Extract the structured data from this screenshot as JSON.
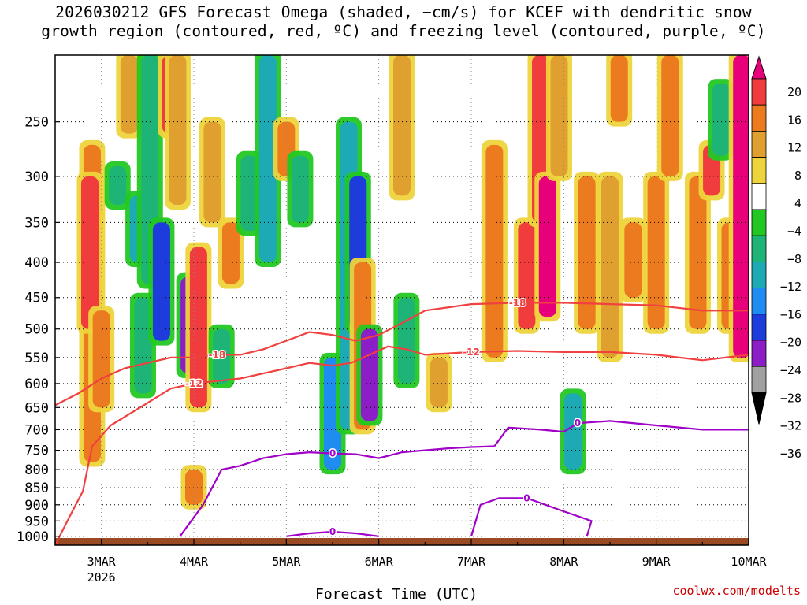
{
  "header": {
    "title_line1": "2026030212 GFS Forecast Omega (shaded, −cm/s) for KCEF with dendritic snow",
    "title_line2": "growth region (contoured, red, ºC) and freezing level (contoured, purple, ºC)"
  },
  "credit": "coolwx.com/modelts",
  "chart_data": {
    "type": "heatmap",
    "title": "2026030212 GFS Forecast Omega (shaded, −cm/s) for KCEF with dendritic snow growth region (contoured, red, ºC) and freezing level (contoured, purple, ºC)",
    "xlabel": "Forecast Time (UTC)",
    "ylabel": "",
    "x_start": "2026-03-02 12Z",
    "x_end": "2026-03-10 00Z",
    "x_ticks": [
      {
        "t": "2026-03-03 00Z",
        "label": "3MAR",
        "sub": "2026"
      },
      {
        "t": "2026-03-04 00Z",
        "label": "4MAR"
      },
      {
        "t": "2026-03-05 00Z",
        "label": "5MAR"
      },
      {
        "t": "2026-03-06 00Z",
        "label": "6MAR"
      },
      {
        "t": "2026-03-07 00Z",
        "label": "7MAR"
      },
      {
        "t": "2026-03-08 00Z",
        "label": "8MAR"
      },
      {
        "t": "2026-03-09 00Z",
        "label": "9MAR"
      },
      {
        "t": "2026-03-10 00Z",
        "label": "10MAR"
      }
    ],
    "y_ticks": [
      250,
      300,
      350,
      400,
      450,
      500,
      550,
      600,
      650,
      700,
      750,
      800,
      850,
      900,
      950,
      1000
    ],
    "y_range": [
      1030,
      200
    ],
    "grid": true,
    "colorbar": {
      "labels": [
        "20",
        "16",
        "12",
        "8",
        "4",
        "−4",
        "−8",
        "−12",
        "−16",
        "−20",
        "−24",
        "−28",
        "−32",
        "−36"
      ],
      "bins": [
        {
          "range": ">20",
          "color": "#e8007a"
        },
        {
          "range": "16 to 20",
          "color": "#f03c3c"
        },
        {
          "range": "12 to 16",
          "color": "#ec7a1e"
        },
        {
          "range": "8 to 12",
          "color": "#e0a030"
        },
        {
          "range": "4 to 8",
          "color": "#eed43c"
        },
        {
          "range": "-4 to 4",
          "color": "#ffffff"
        },
        {
          "range": "-8 to -4",
          "color": "#22c822"
        },
        {
          "range": "-12 to -8",
          "color": "#1eb478"
        },
        {
          "range": "-16 to -12",
          "color": "#1eaab4"
        },
        {
          "range": "-20 to -16",
          "color": "#1e8cf0"
        },
        {
          "range": "-24 to -20",
          "color": "#1e3cdc"
        },
        {
          "range": "-28 to -24",
          "color": "#8c1ec8"
        },
        {
          "range": "-32 to -28",
          "color": "#a0a0a0"
        },
        {
          "range": "<-36",
          "color": "#000000"
        }
      ]
    },
    "omega_features": [
      {
        "t": 0.8,
        "p_top": 270,
        "p_bot": 780,
        "v": 12
      },
      {
        "t": 0.75,
        "p_top": 300,
        "p_bot": 500,
        "v": 16
      },
      {
        "t": 1.0,
        "p_top": 470,
        "p_bot": 650,
        "v": 12
      },
      {
        "t": 1.35,
        "p_top": 290,
        "p_bot": 330,
        "v": -8
      },
      {
        "t": 1.6,
        "p_top": 200,
        "p_bot": 260,
        "v": 8
      },
      {
        "t": 1.8,
        "p_top": 320,
        "p_bot": 400,
        "v": -12
      },
      {
        "t": 1.9,
        "p_top": 450,
        "p_bot": 620,
        "v": -8
      },
      {
        "t": 2.05,
        "p_top": 200,
        "p_bot": 430,
        "v": -8
      },
      {
        "t": 2.3,
        "p_top": 350,
        "p_bot": 520,
        "v": -20
      },
      {
        "t": 2.5,
        "p_top": 200,
        "p_bot": 260,
        "v": 16
      },
      {
        "t": 2.65,
        "p_top": 200,
        "p_bot": 330,
        "v": 8
      },
      {
        "t": 2.9,
        "p_top": 420,
        "p_bot": 580,
        "v": -24
      },
      {
        "t": 3.1,
        "p_top": 380,
        "p_bot": 650,
        "v": 16
      },
      {
        "t": 3.0,
        "p_top": 800,
        "p_bot": 900,
        "v": 12
      },
      {
        "t": 3.4,
        "p_top": 250,
        "p_bot": 350,
        "v": 8
      },
      {
        "t": 3.6,
        "p_top": 500,
        "p_bot": 600,
        "v": -8
      },
      {
        "t": 3.8,
        "p_top": 350,
        "p_bot": 430,
        "v": 12
      },
      {
        "t": 4.2,
        "p_top": 280,
        "p_bot": 360,
        "v": -8
      },
      {
        "t": 4.6,
        "p_top": 200,
        "p_bot": 400,
        "v": -12
      },
      {
        "t": 5.0,
        "p_top": 250,
        "p_bot": 300,
        "v": 12
      },
      {
        "t": 5.3,
        "p_top": 280,
        "p_bot": 350,
        "v": -8
      },
      {
        "t": 6.0,
        "p_top": 550,
        "p_bot": 800,
        "v": -16
      },
      {
        "t": 6.35,
        "p_top": 250,
        "p_bot": 700,
        "v": -12
      },
      {
        "t": 6.55,
        "p_top": 300,
        "p_bot": 500,
        "v": -20
      },
      {
        "t": 6.65,
        "p_top": 400,
        "p_bot": 700,
        "v": 12
      },
      {
        "t": 6.8,
        "p_top": 500,
        "p_bot": 680,
        "v": -24
      },
      {
        "t": 7.5,
        "p_top": 200,
        "p_bot": 320,
        "v": 8
      },
      {
        "t": 7.6,
        "p_top": 450,
        "p_bot": 600,
        "v": -8
      },
      {
        "t": 8.3,
        "p_top": 550,
        "p_bot": 650,
        "v": 8
      },
      {
        "t": 9.5,
        "p_top": 270,
        "p_bot": 550,
        "v": 12
      },
      {
        "t": 10.2,
        "p_top": 350,
        "p_bot": 500,
        "v": 16
      },
      {
        "t": 10.5,
        "p_top": 200,
        "p_bot": 350,
        "v": 16
      },
      {
        "t": 10.65,
        "p_top": 300,
        "p_bot": 480,
        "v": 20
      },
      {
        "t": 10.9,
        "p_top": 200,
        "p_bot": 300,
        "v": 8
      },
      {
        "t": 11.2,
        "p_top": 620,
        "p_bot": 800,
        "v": -12
      },
      {
        "t": 11.5,
        "p_top": 300,
        "p_bot": 500,
        "v": 12
      },
      {
        "t": 12.0,
        "p_top": 300,
        "p_bot": 550,
        "v": 8
      },
      {
        "t": 12.2,
        "p_top": 200,
        "p_bot": 250,
        "v": 12
      },
      {
        "t": 12.5,
        "p_top": 350,
        "p_bot": 450,
        "v": 12
      },
      {
        "t": 13.0,
        "p_top": 300,
        "p_bot": 500,
        "v": 12
      },
      {
        "t": 13.3,
        "p_top": 200,
        "p_bot": 300,
        "v": 12
      },
      {
        "t": 13.9,
        "p_top": 300,
        "p_bot": 500,
        "v": 12
      },
      {
        "t": 14.2,
        "p_top": 270,
        "p_bot": 320,
        "v": 16
      },
      {
        "t": 14.4,
        "p_top": 220,
        "p_bot": 280,
        "v": -8
      },
      {
        "t": 14.6,
        "p_top": 350,
        "p_bot": 500,
        "v": 12
      },
      {
        "t": 14.85,
        "p_top": 200,
        "p_bot": 550,
        "v": 20
      }
    ],
    "red_contours": [
      {
        "label": "-18",
        "points": [
          [
            0,
            645
          ],
          [
            0.5,
            620
          ],
          [
            1.0,
            590
          ],
          [
            1.5,
            570
          ],
          [
            2.0,
            560
          ],
          [
            2.5,
            550
          ],
          [
            3.0,
            550
          ],
          [
            3.5,
            545
          ],
          [
            4.0,
            545
          ],
          [
            4.5,
            535
          ],
          [
            5.0,
            520
          ],
          [
            5.5,
            505
          ],
          [
            6.0,
            510
          ],
          [
            6.5,
            520
          ],
          [
            7.0,
            510
          ],
          [
            7.5,
            490
          ],
          [
            8.0,
            470
          ],
          [
            9.0,
            460
          ],
          [
            10.0,
            458
          ],
          [
            11.0,
            458
          ],
          [
            12.0,
            460
          ],
          [
            13.0,
            462
          ],
          [
            14.0,
            470
          ],
          [
            15.0,
            470
          ]
        ]
      },
      {
        "label": "-12",
        "points": [
          [
            0,
            1030
          ],
          [
            0.3,
            940
          ],
          [
            0.6,
            860
          ],
          [
            0.8,
            740
          ],
          [
            1.2,
            690
          ],
          [
            2.0,
            640
          ],
          [
            2.5,
            610
          ],
          [
            3.0,
            600
          ],
          [
            3.5,
            595
          ],
          [
            4.0,
            590
          ],
          [
            4.5,
            580
          ],
          [
            5.0,
            570
          ],
          [
            5.5,
            560
          ],
          [
            6.0,
            565
          ],
          [
            6.4,
            560
          ],
          [
            6.8,
            545
          ],
          [
            7.2,
            530
          ],
          [
            7.6,
            535
          ],
          [
            8.0,
            545
          ],
          [
            9.0,
            540
          ],
          [
            10.0,
            538
          ],
          [
            11.0,
            540
          ],
          [
            12.0,
            540
          ],
          [
            13.0,
            545
          ],
          [
            14.0,
            555
          ],
          [
            15.0,
            545
          ]
        ]
      }
    ],
    "purple_contours": [
      {
        "label": "0",
        "points": [
          [
            2.7,
            1000
          ],
          [
            3.2,
            900
          ],
          [
            3.6,
            800
          ],
          [
            4.0,
            790
          ],
          [
            4.5,
            770
          ],
          [
            5.0,
            760
          ],
          [
            5.5,
            755
          ],
          [
            6.0,
            758
          ],
          [
            6.5,
            760
          ],
          [
            7.0,
            770
          ],
          [
            7.5,
            755
          ],
          [
            8.0,
            750
          ],
          [
            8.5,
            745
          ],
          [
            9.0,
            742
          ],
          [
            9.5,
            740
          ]
        ]
      },
      {
        "label": "0",
        "points": [
          [
            9.5,
            740
          ],
          [
            9.8,
            695
          ],
          [
            10.5,
            700
          ],
          [
            11.0,
            705
          ],
          [
            11.3,
            685
          ],
          [
            12.0,
            680
          ],
          [
            13.0,
            690
          ],
          [
            14.0,
            700
          ],
          [
            15.0,
            700
          ]
        ]
      },
      {
        "label": "0",
        "points": [
          [
            9.0,
            1000
          ],
          [
            9.2,
            900
          ],
          [
            9.6,
            880
          ],
          [
            10.2,
            880
          ],
          [
            11.0,
            920
          ],
          [
            11.6,
            950
          ],
          [
            11.5,
            1000
          ]
        ]
      },
      {
        "label": "0",
        "points": [
          [
            5.0,
            1000
          ],
          [
            5.5,
            990
          ],
          [
            6.0,
            985
          ],
          [
            6.5,
            990
          ],
          [
            7.0,
            1000
          ]
        ]
      }
    ]
  }
}
